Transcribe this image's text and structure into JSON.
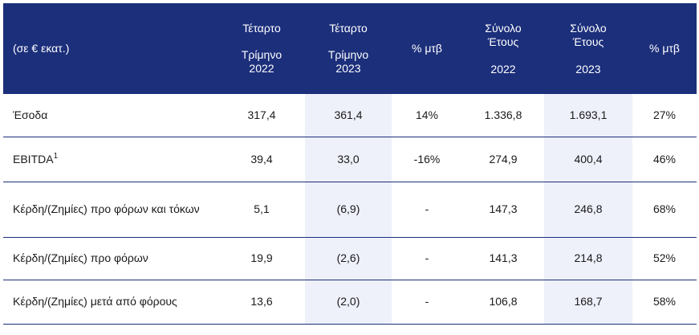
{
  "header": {
    "unit": "(σε € εκατ.)",
    "q4_2022": {
      "line1": "Τέταρτο",
      "line2": "Τρίμηνο",
      "line3": "2022"
    },
    "q4_2023": {
      "line1": "Τέταρτο",
      "line2": "Τρίμηνο",
      "line3": "2023"
    },
    "pct_q": "% μτβ",
    "fy_2022": {
      "line1": "Σύνολο",
      "line2": "Έτους",
      "line3": "2022"
    },
    "fy_2023": {
      "line1": "Σύνολο",
      "line2": "Έτους",
      "line3": "2023"
    },
    "pct_fy": "% μτβ"
  },
  "rows": [
    {
      "label": "Έσοδα",
      "footnote": "",
      "q4_2022": "317,4",
      "q4_2023": "361,4",
      "pct_q": "14%",
      "fy_2022": "1.336,8",
      "fy_2023": "1.693,1",
      "pct_fy": "27%"
    },
    {
      "label": "EBITDA",
      "footnote": "1",
      "q4_2022": "39,4",
      "q4_2023": "33,0",
      "pct_q": "-16%",
      "fy_2022": "274,9",
      "fy_2023": "400,4",
      "pct_fy": "46%"
    },
    {
      "label": "Κέρδη/(Ζημίες) προ φόρων και τόκων",
      "footnote": "",
      "q4_2022": "5,1",
      "q4_2023": "(6,9)",
      "pct_q": "-",
      "fy_2022": "147,3",
      "fy_2023": "246,8",
      "pct_fy": "68%"
    },
    {
      "label": "Κέρδη/(Ζημίες) προ φόρων",
      "footnote": "",
      "q4_2022": "19,9",
      "q4_2023": "(2,6)",
      "pct_q": "-",
      "fy_2022": "141,3",
      "fy_2023": "214,8",
      "pct_fy": "52%"
    },
    {
      "label": "Κέρδη/(Ζημίες) μετά από φόρους",
      "footnote": "",
      "q4_2022": "13,6",
      "q4_2023": "(2,0)",
      "pct_q": "-",
      "fy_2022": "106,8",
      "fy_2023": "168,7",
      "pct_fy": "58%"
    }
  ],
  "colors": {
    "header_bg": "#1c2f7b",
    "highlight_bg": "#eef0fa",
    "rule": "#1c2f7b"
  }
}
